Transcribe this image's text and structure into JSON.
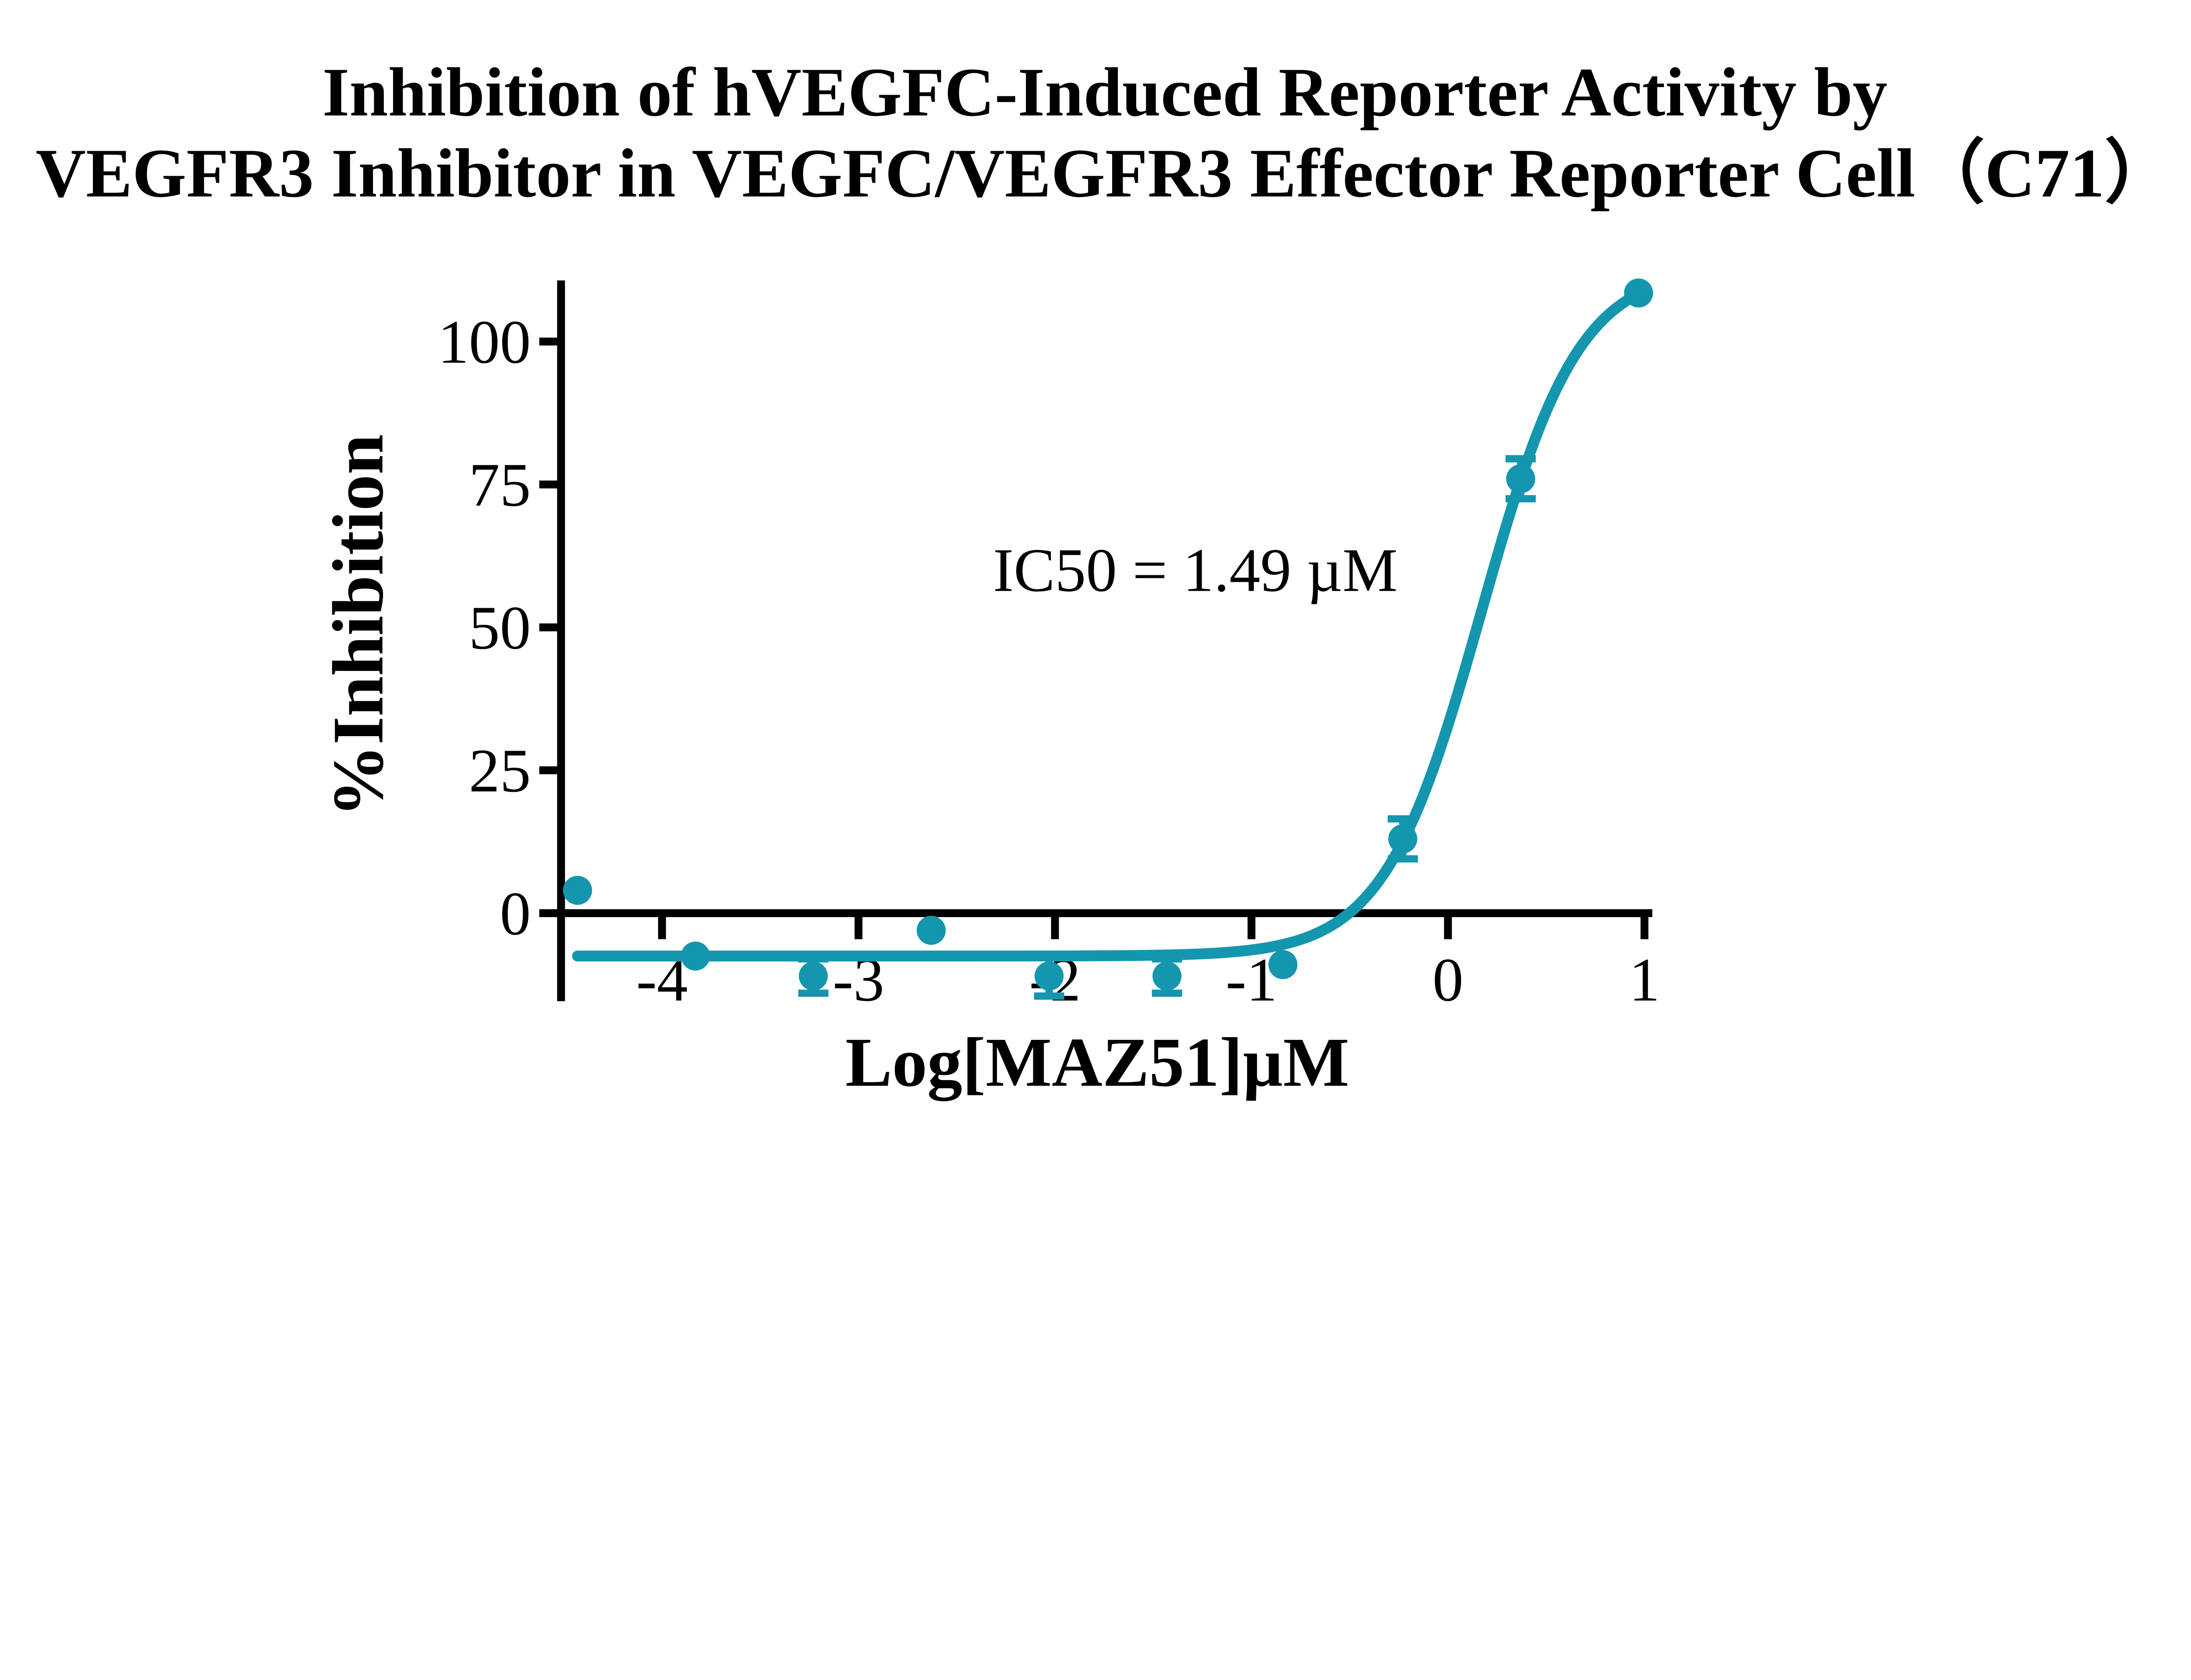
{
  "title": {
    "line1": "Inhibition of hVEGFC-Induced Reporter Activity by",
    "line2": "VEGFR3 Inhibitor in VEGFC/VEGFR3 Effector Reporter Cell（C71）"
  },
  "colors": {
    "curve": "#1596AF",
    "axis": "#000000",
    "text": "#000000",
    "background": "#FFFFFF"
  },
  "chart_data": {
    "type": "scatter",
    "title": "Inhibition of hVEGFC-Induced Reporter Activity by VEGFR3 Inhibitor in VEGFC/VEGFR3 Effector Reporter Cell（C71）",
    "xlabel": "Log[MAZ51]µM",
    "ylabel": "%Inhibition",
    "annotation": "IC50 = 1.49 µM",
    "ic50_uM": 1.49,
    "x_ticks": [
      -4,
      -3,
      -2,
      -1,
      0,
      1
    ],
    "y_ticks": [
      0,
      25,
      50,
      75,
      100
    ],
    "xlim": [
      -4.62,
      1.04
    ],
    "ylim": [
      -15.4,
      110.7
    ],
    "grid": false,
    "legend": "none",
    "series": [
      {
        "name": "MAZ51",
        "color": "#1596AF",
        "marker": "circle",
        "points": [
          {
            "x": -4.43,
            "y": 4,
            "err": 0
          },
          {
            "x": -3.83,
            "y": -7.5,
            "err": 0
          },
          {
            "x": -3.23,
            "y": -11,
            "err": 3
          },
          {
            "x": -2.63,
            "y": -3,
            "err": 0
          },
          {
            "x": -2.03,
            "y": -11,
            "err": 3.5
          },
          {
            "x": -1.43,
            "y": -11,
            "err": 3
          },
          {
            "x": -0.84,
            "y": -9,
            "err": 0
          },
          {
            "x": -0.23,
            "y": 13,
            "err": 3.5
          },
          {
            "x": 0.37,
            "y": 76,
            "err": 3.5
          },
          {
            "x": 0.97,
            "y": 108.5,
            "err": 0
          }
        ],
        "fit": {
          "model": "4PL",
          "bottom": -7.5,
          "top": 113,
          "log_ic50": 0.17,
          "hill": 1.75,
          "x_start": -4.43,
          "x_end": 0.97
        }
      }
    ]
  }
}
